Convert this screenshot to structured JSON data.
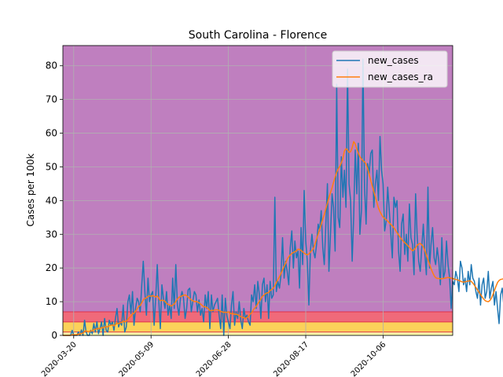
{
  "chart_data": {
    "type": "line",
    "title": "South Carolina - Florence",
    "xlabel": "",
    "ylabel": "Cases per 100k",
    "start_date": "2020-03-13",
    "xlim": [
      "2020-03-13",
      "2020-11-20"
    ],
    "ylim": [
      0,
      86
    ],
    "x_ticks": [
      "2020-03-20",
      "2020-05-09",
      "2020-06-28",
      "2020-08-17",
      "2020-10-06"
    ],
    "y_ticks": [
      0,
      10,
      20,
      30,
      40,
      50,
      60,
      70,
      80
    ],
    "grid": true,
    "legend": "top-right",
    "bands": [
      {
        "from": 0,
        "to": 1,
        "color": "#ffffa8"
      },
      {
        "from": 1,
        "to": 4,
        "color": "#fbd25a"
      },
      {
        "from": 4,
        "to": 7,
        "color": "#f06a7a"
      },
      {
        "from": 7,
        "to": 86,
        "color": "#bf7fbf"
      }
    ],
    "series": [
      {
        "name": "new_cases",
        "color": "#1f77b4",
        "values": [
          0,
          0,
          0,
          0,
          0,
          0,
          1.5,
          0,
          0,
          0,
          1,
          0,
          1.6,
          0,
          4.5,
          1,
          0,
          0,
          1.5,
          0.5,
          3.5,
          1,
          4,
          0.5,
          2,
          4,
          0,
          5,
          1.5,
          1,
          4.5,
          3,
          4,
          1.5,
          5,
          8,
          2.5,
          4,
          3,
          9,
          1,
          2.5,
          10,
          12,
          6.5,
          13,
          3,
          8,
          11,
          10,
          7,
          15,
          22,
          13,
          6,
          17,
          10,
          12,
          13,
          3,
          11,
          21,
          10.5,
          2,
          15,
          11,
          8,
          13,
          6,
          9,
          5,
          17,
          8,
          21,
          9,
          6,
          11,
          13,
          11,
          5,
          8,
          13.5,
          14,
          7,
          10,
          13,
          12,
          7,
          10.5,
          6,
          8,
          4,
          12,
          8,
          13,
          2,
          12,
          7,
          9,
          10,
          11,
          6,
          2,
          12,
          0,
          11,
          6,
          4,
          2,
          9,
          13,
          3,
          7,
          5,
          10,
          4.5,
          2,
          8,
          5,
          6,
          4,
          3,
          12,
          10,
          15,
          8,
          16,
          12,
          5,
          15,
          17,
          10,
          15,
          5,
          16,
          11,
          12,
          41,
          13,
          16,
          14,
          18,
          29,
          17,
          22,
          19,
          15,
          26,
          31,
          20,
          28,
          23,
          25,
          14,
          32,
          21,
          43,
          28,
          22,
          9,
          25,
          30,
          25,
          23,
          27,
          33,
          31,
          37,
          26,
          21,
          33,
          45,
          19,
          30,
          42,
          38,
          25,
          74.5,
          35,
          32,
          53,
          41,
          49,
          38,
          79,
          45,
          40,
          22,
          35,
          55,
          42,
          57,
          30,
          37,
          82,
          44,
          33,
          51,
          48,
          54,
          55,
          38,
          45,
          49,
          40,
          59,
          49,
          45,
          31,
          34,
          44,
          37,
          30,
          23,
          41,
          38,
          40,
          25,
          19,
          33,
          36,
          24,
          30,
          22,
          39,
          29,
          27,
          18,
          42,
          30,
          22,
          19,
          26,
          33,
          24,
          18,
          44,
          20,
          27,
          32,
          23,
          21,
          26,
          22,
          15,
          29,
          17,
          19,
          28,
          21,
          17,
          8,
          16,
          15,
          19,
          17,
          13,
          22,
          20,
          15,
          17,
          13,
          19,
          15,
          21,
          17,
          16,
          13,
          11,
          17,
          9,
          15,
          17,
          11,
          13,
          19,
          11,
          14,
          16,
          9,
          13,
          8,
          3.5,
          12,
          14,
          9,
          17,
          23,
          11,
          15,
          32,
          22,
          14,
          19,
          16,
          15,
          12,
          23,
          9,
          20,
          17,
          14,
          21,
          18,
          16,
          13,
          22,
          11,
          18,
          25,
          12,
          22,
          15,
          31,
          8,
          22,
          26,
          10,
          16,
          25,
          5.5,
          20,
          27,
          17,
          19,
          22,
          24,
          16,
          21,
          7,
          19,
          18,
          40.5,
          24,
          11,
          20,
          7,
          22,
          23
        ]
      },
      {
        "name": "new_cases_ra",
        "color": "#ff7f0e",
        "values": [
          0,
          0,
          0,
          0,
          0,
          0,
          0.2,
          0.2,
          0.2,
          0.2,
          0.4,
          0.4,
          0.6,
          0.6,
          1.2,
          1.3,
          1.1,
          1.1,
          1.3,
          1.3,
          1.7,
          1.8,
          2,
          2,
          2.1,
          2.3,
          2.2,
          2.5,
          2.6,
          2.5,
          2.9,
          3,
          3.1,
          2.8,
          3.2,
          3.7,
          3.4,
          3.8,
          3.8,
          4.3,
          4,
          4.2,
          4.7,
          5.3,
          5.6,
          6.4,
          6.6,
          7.2,
          7.8,
          8.6,
          8.8,
          9.7,
          10.5,
          11,
          11.1,
          11.6,
          11.7,
          11.6,
          11.8,
          11.6,
          11.4,
          11.7,
          11.1,
          10.3,
          10.4,
          10.4,
          10.1,
          9.5,
          9.2,
          9,
          8.7,
          9,
          9.3,
          10.1,
          10.8,
          11.3,
          11.5,
          11.7,
          11.9,
          12,
          11.8,
          11.3,
          11,
          10.5,
          10.3,
          10,
          10.1,
          9.9,
          9.7,
          9.3,
          8.9,
          8.5,
          8.5,
          8.3,
          7.9,
          7.3,
          7.4,
          7.4,
          7.5,
          7.6,
          7.6,
          7.4,
          7.1,
          7,
          6.8,
          6.9,
          6.8,
          7,
          6.6,
          6.4,
          6.5,
          6.2,
          6.3,
          6.1,
          5.8,
          5.6,
          5.4,
          5.2,
          5,
          5.3,
          5.6,
          6.3,
          6.7,
          7.5,
          8.1,
          8.6,
          9.4,
          10.1,
          10.8,
          11.6,
          11.9,
          12.4,
          12.6,
          12.7,
          13.3,
          13.6,
          14,
          14.7,
          15.7,
          16.6,
          17.4,
          18.4,
          19.4,
          20.5,
          21.4,
          22.6,
          23.3,
          23.9,
          24.3,
          24.6,
          24.8,
          25.1,
          25.6,
          25.5,
          25.2,
          24.8,
          24.4,
          24.1,
          23.9,
          24.2,
          24.7,
          25.2,
          25.8,
          27.1,
          28.6,
          30,
          31.5,
          32.9,
          34.5,
          35.8,
          37.6,
          39.3,
          40.9,
          42.4,
          43.8,
          45.4,
          47,
          48.4,
          49.4,
          50.1,
          51.2,
          52.5,
          54.7,
          55.4,
          55,
          54.3,
          54.5,
          55.7,
          57.5,
          56.8,
          55.3,
          54.1,
          53,
          52.4,
          51.8,
          51.5,
          50.8,
          49.5,
          47.8,
          46,
          44.3,
          42.7,
          41.1,
          39.4,
          37.8,
          36.7,
          35.8,
          35.1,
          34.7,
          34.3,
          33.9,
          33.4,
          32.9,
          32.5,
          31.9,
          31.2,
          30.5,
          29.8,
          29.1,
          28.5,
          28,
          27.5,
          27.1,
          26.6,
          26.1,
          25.6,
          25.1,
          25.4,
          26,
          26.7,
          27.1,
          27.3,
          26.9,
          26.3,
          25.2,
          23.9,
          22.5,
          21.1,
          19.8,
          18.7,
          17.7,
          17.1,
          16.9,
          16.9,
          16.8,
          16.8,
          16.9,
          17,
          17.1,
          17.2,
          17.1,
          17,
          16.9,
          16.7,
          16.6,
          16.5,
          16.3,
          16.1,
          15.9,
          15.8,
          15.9,
          16,
          16.1,
          16.2,
          16,
          15.5,
          14.9,
          14.2,
          13.5,
          12.8,
          12.1,
          11.4,
          10.8,
          10.3,
          10.1,
          10,
          10.3,
          11,
          12.1,
          13.3,
          14.6,
          15.7,
          16.3,
          16.6,
          16.7,
          16.8,
          16.6,
          16.4,
          16.3,
          16.4,
          16.6,
          16.9,
          17.1,
          17.4,
          17.7,
          17.9,
          18.1,
          18.5,
          18.8,
          19,
          19.4,
          19.6,
          19.8,
          19.9,
          20,
          19.8,
          19.5,
          19.2,
          18.9,
          18.6,
          18.4,
          18.6,
          18.9,
          19.3,
          19.6,
          19.3,
          18.6,
          17.9,
          17.5,
          17.6,
          18.2,
          18.8,
          19.1,
          19
        ]
      }
    ]
  }
}
